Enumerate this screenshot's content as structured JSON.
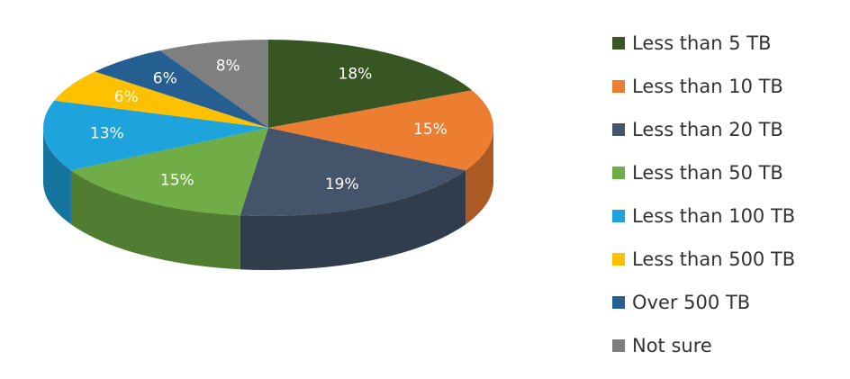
{
  "chart_data": {
    "type": "pie",
    "categories": [
      "Less than 5 TB",
      "Less than 10 TB",
      "Less than 20 TB",
      "Less than 50 TB",
      "Less than 100 TB",
      "Less than 500 TB",
      "Over 500 TB",
      "Not sure"
    ],
    "values": [
      18,
      15,
      19,
      15,
      13,
      6,
      6,
      8
    ],
    "value_labels": [
      "18%",
      "15%",
      "19%",
      "15%",
      "13%",
      "6%",
      "6%",
      "8%"
    ],
    "colors": [
      "#375623",
      "#ed7d31",
      "#44546a",
      "#70ad47",
      "#1fa3dd",
      "#ffc000",
      "#255e91",
      "#7f7f7f"
    ],
    "legend": "right"
  }
}
